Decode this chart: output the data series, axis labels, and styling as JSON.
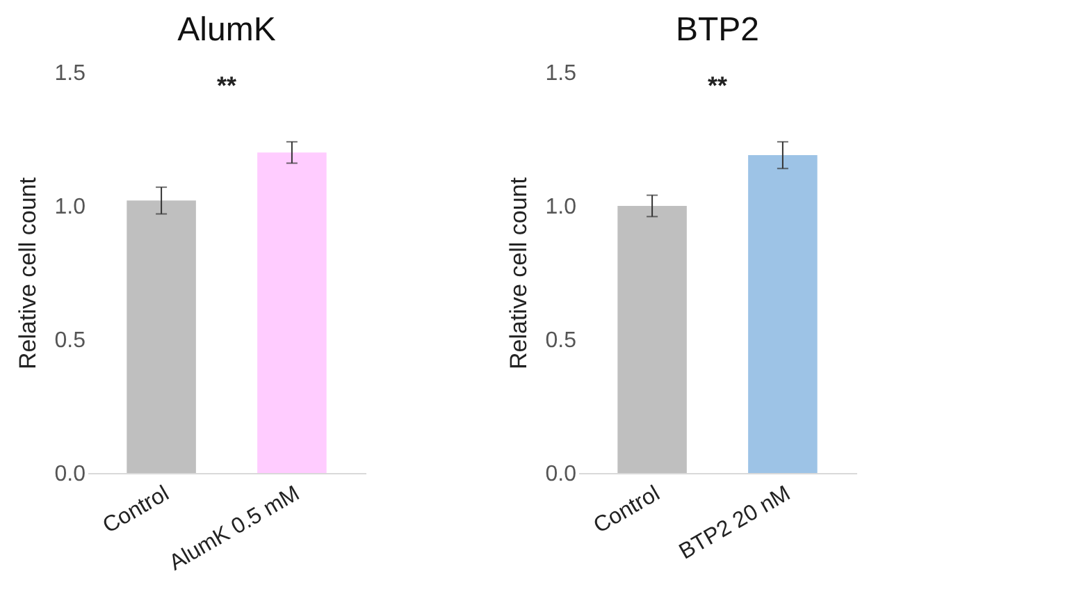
{
  "chart_data": [
    {
      "type": "bar",
      "title": "AlumK",
      "ylabel": "Relative cell count",
      "categories": [
        "Control",
        "AlumK 0.5 mM"
      ],
      "values": [
        1.02,
        1.2
      ],
      "errors": [
        0.05,
        0.04
      ],
      "colors": [
        "#bfbfbf",
        "#ffccff"
      ],
      "ylim": [
        0,
        1.5
      ],
      "yticks": [
        {
          "value": 0,
          "label": "0.0"
        },
        {
          "value": 0.5,
          "label": "0.5"
        },
        {
          "value": 1,
          "label": "1.0"
        },
        {
          "value": 1.5,
          "label": "1.5"
        }
      ],
      "annotations": [
        "**"
      ]
    },
    {
      "type": "bar",
      "title": "BTP2",
      "ylabel": "Relative cell count",
      "categories": [
        "Control",
        "BTP2 20 nM"
      ],
      "values": [
        1.0,
        1.19
      ],
      "errors": [
        0.04,
        0.05
      ],
      "colors": [
        "#bfbfbf",
        "#9dc3e6"
      ],
      "ylim": [
        0,
        1.5
      ],
      "yticks": [
        {
          "value": 0,
          "label": "0.0"
        },
        {
          "value": 0.5,
          "label": "0.5"
        },
        {
          "value": 1,
          "label": "1.0"
        },
        {
          "value": 1.5,
          "label": "1.5"
        }
      ],
      "annotations": [
        "**"
      ]
    }
  ]
}
